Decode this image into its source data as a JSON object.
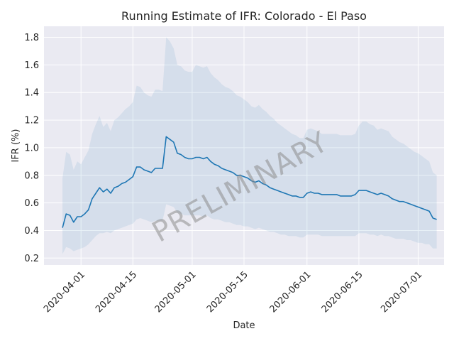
{
  "chart_data": {
    "type": "line",
    "title": "Running Estimate of IFR: Colorado - El Paso",
    "xlabel": "Date",
    "ylabel": "IFR (%)",
    "xlim": [
      "2020-03-22",
      "2020-07-08"
    ],
    "ylim": [
      0.15,
      1.88
    ],
    "x_ticks": [
      "2020-04-01",
      "2020-04-15",
      "2020-05-01",
      "2020-05-15",
      "2020-06-01",
      "2020-06-15",
      "2020-07-01"
    ],
    "y_ticks": [
      0.2,
      0.4,
      0.6,
      0.8,
      1.0,
      1.2,
      1.4,
      1.6,
      1.8
    ],
    "y_tick_labels": [
      "0.2",
      "0.4",
      "0.6",
      "0.8",
      "1.0",
      "1.2",
      "1.4",
      "1.6",
      "1.8"
    ],
    "grid": true,
    "watermark": "PRELIMINARY",
    "colors": {
      "line": "#1f77b4",
      "band": "#1f77b4",
      "plot_bg": "#eaeaf2",
      "grid": "#ffffff"
    },
    "series": [
      {
        "x": [
          "2020-03-27",
          "2020-03-28",
          "2020-03-29",
          "2020-03-30",
          "2020-03-31",
          "2020-04-01",
          "2020-04-02",
          "2020-04-03",
          "2020-04-04",
          "2020-04-05",
          "2020-04-06",
          "2020-04-07",
          "2020-04-08",
          "2020-04-09",
          "2020-04-10",
          "2020-04-11",
          "2020-04-12",
          "2020-04-13",
          "2020-04-14",
          "2020-04-15",
          "2020-04-16",
          "2020-04-17",
          "2020-04-18",
          "2020-04-19",
          "2020-04-20",
          "2020-04-21",
          "2020-04-22",
          "2020-04-23",
          "2020-04-24",
          "2020-04-25",
          "2020-04-26",
          "2020-04-27",
          "2020-04-28",
          "2020-04-29",
          "2020-04-30",
          "2020-05-01",
          "2020-05-02",
          "2020-05-03",
          "2020-05-04",
          "2020-05-05",
          "2020-05-06",
          "2020-05-07",
          "2020-05-08",
          "2020-05-09",
          "2020-05-10",
          "2020-05-11",
          "2020-05-12",
          "2020-05-13",
          "2020-05-14",
          "2020-05-15",
          "2020-05-16",
          "2020-05-17",
          "2020-05-18",
          "2020-05-19",
          "2020-05-20",
          "2020-05-21",
          "2020-05-22",
          "2020-05-23",
          "2020-05-24",
          "2020-05-25",
          "2020-05-26",
          "2020-05-27",
          "2020-05-28",
          "2020-05-29",
          "2020-05-30",
          "2020-05-31",
          "2020-06-01",
          "2020-06-02",
          "2020-06-03",
          "2020-06-04",
          "2020-06-05",
          "2020-06-06",
          "2020-06-07",
          "2020-06-08",
          "2020-06-09",
          "2020-06-10",
          "2020-06-11",
          "2020-06-12",
          "2020-06-13",
          "2020-06-14",
          "2020-06-15",
          "2020-06-16",
          "2020-06-17",
          "2020-06-18",
          "2020-06-19",
          "2020-06-20",
          "2020-06-21",
          "2020-06-22",
          "2020-06-23",
          "2020-06-24",
          "2020-06-25",
          "2020-06-26",
          "2020-06-27",
          "2020-06-28",
          "2020-06-29",
          "2020-06-30",
          "2020-07-01",
          "2020-07-02",
          "2020-07-03",
          "2020-07-04",
          "2020-07-05",
          "2020-07-06"
        ],
        "values": [
          0.42,
          0.52,
          0.51,
          0.46,
          0.5,
          0.5,
          0.52,
          0.55,
          0.63,
          0.67,
          0.71,
          0.68,
          0.7,
          0.67,
          0.71,
          0.72,
          0.74,
          0.75,
          0.77,
          0.79,
          0.86,
          0.86,
          0.84,
          0.83,
          0.82,
          0.85,
          0.85,
          0.85,
          1.08,
          1.06,
          1.04,
          0.96,
          0.95,
          0.93,
          0.92,
          0.92,
          0.93,
          0.93,
          0.92,
          0.93,
          0.9,
          0.88,
          0.87,
          0.85,
          0.84,
          0.83,
          0.82,
          0.8,
          0.8,
          0.79,
          0.78,
          0.76,
          0.75,
          0.76,
          0.74,
          0.73,
          0.71,
          0.7,
          0.69,
          0.68,
          0.67,
          0.66,
          0.65,
          0.65,
          0.64,
          0.64,
          0.67,
          0.68,
          0.67,
          0.67,
          0.66,
          0.66,
          0.66,
          0.66,
          0.66,
          0.65,
          0.65,
          0.65,
          0.65,
          0.66,
          0.69,
          0.69,
          0.69,
          0.68,
          0.67,
          0.66,
          0.67,
          0.66,
          0.65,
          0.63,
          0.62,
          0.61,
          0.61,
          0.6,
          0.59,
          0.58,
          0.57,
          0.56,
          0.55,
          0.54,
          0.49,
          0.48
        ],
        "lower": [
          0.23,
          0.28,
          0.27,
          0.25,
          0.26,
          0.27,
          0.28,
          0.3,
          0.33,
          0.36,
          0.38,
          0.38,
          0.39,
          0.38,
          0.4,
          0.41,
          0.42,
          0.43,
          0.44,
          0.45,
          0.48,
          0.49,
          0.48,
          0.47,
          0.46,
          0.47,
          0.47,
          0.47,
          0.59,
          0.58,
          0.57,
          0.53,
          0.52,
          0.51,
          0.51,
          0.51,
          0.51,
          0.51,
          0.5,
          0.51,
          0.49,
          0.48,
          0.48,
          0.47,
          0.46,
          0.46,
          0.45,
          0.44,
          0.44,
          0.43,
          0.43,
          0.42,
          0.41,
          0.42,
          0.41,
          0.4,
          0.39,
          0.39,
          0.38,
          0.37,
          0.37,
          0.36,
          0.36,
          0.36,
          0.35,
          0.35,
          0.37,
          0.37,
          0.37,
          0.37,
          0.36,
          0.36,
          0.36,
          0.36,
          0.36,
          0.36,
          0.36,
          0.36,
          0.36,
          0.36,
          0.38,
          0.38,
          0.38,
          0.37,
          0.37,
          0.36,
          0.37,
          0.36,
          0.36,
          0.35,
          0.34,
          0.34,
          0.34,
          0.33,
          0.33,
          0.32,
          0.31,
          0.31,
          0.3,
          0.3,
          0.27,
          0.27
        ],
        "upper": [
          0.78,
          0.97,
          0.95,
          0.84,
          0.9,
          0.88,
          0.93,
          0.98,
          1.1,
          1.17,
          1.23,
          1.15,
          1.18,
          1.12,
          1.2,
          1.22,
          1.25,
          1.28,
          1.3,
          1.33,
          1.45,
          1.44,
          1.4,
          1.38,
          1.37,
          1.42,
          1.42,
          1.41,
          1.8,
          1.77,
          1.72,
          1.6,
          1.59,
          1.56,
          1.55,
          1.55,
          1.6,
          1.59,
          1.58,
          1.59,
          1.54,
          1.51,
          1.49,
          1.46,
          1.44,
          1.43,
          1.41,
          1.38,
          1.37,
          1.35,
          1.33,
          1.3,
          1.29,
          1.31,
          1.28,
          1.26,
          1.23,
          1.21,
          1.18,
          1.16,
          1.14,
          1.12,
          1.1,
          1.09,
          1.07,
          1.07,
          1.13,
          1.14,
          1.13,
          1.12,
          1.1,
          1.1,
          1.1,
          1.1,
          1.1,
          1.09,
          1.09,
          1.09,
          1.09,
          1.1,
          1.16,
          1.19,
          1.19,
          1.17,
          1.16,
          1.13,
          1.14,
          1.13,
          1.12,
          1.08,
          1.06,
          1.04,
          1.03,
          1.01,
          0.99,
          0.97,
          0.96,
          0.94,
          0.92,
          0.9,
          0.82,
          0.8
        ]
      }
    ]
  }
}
